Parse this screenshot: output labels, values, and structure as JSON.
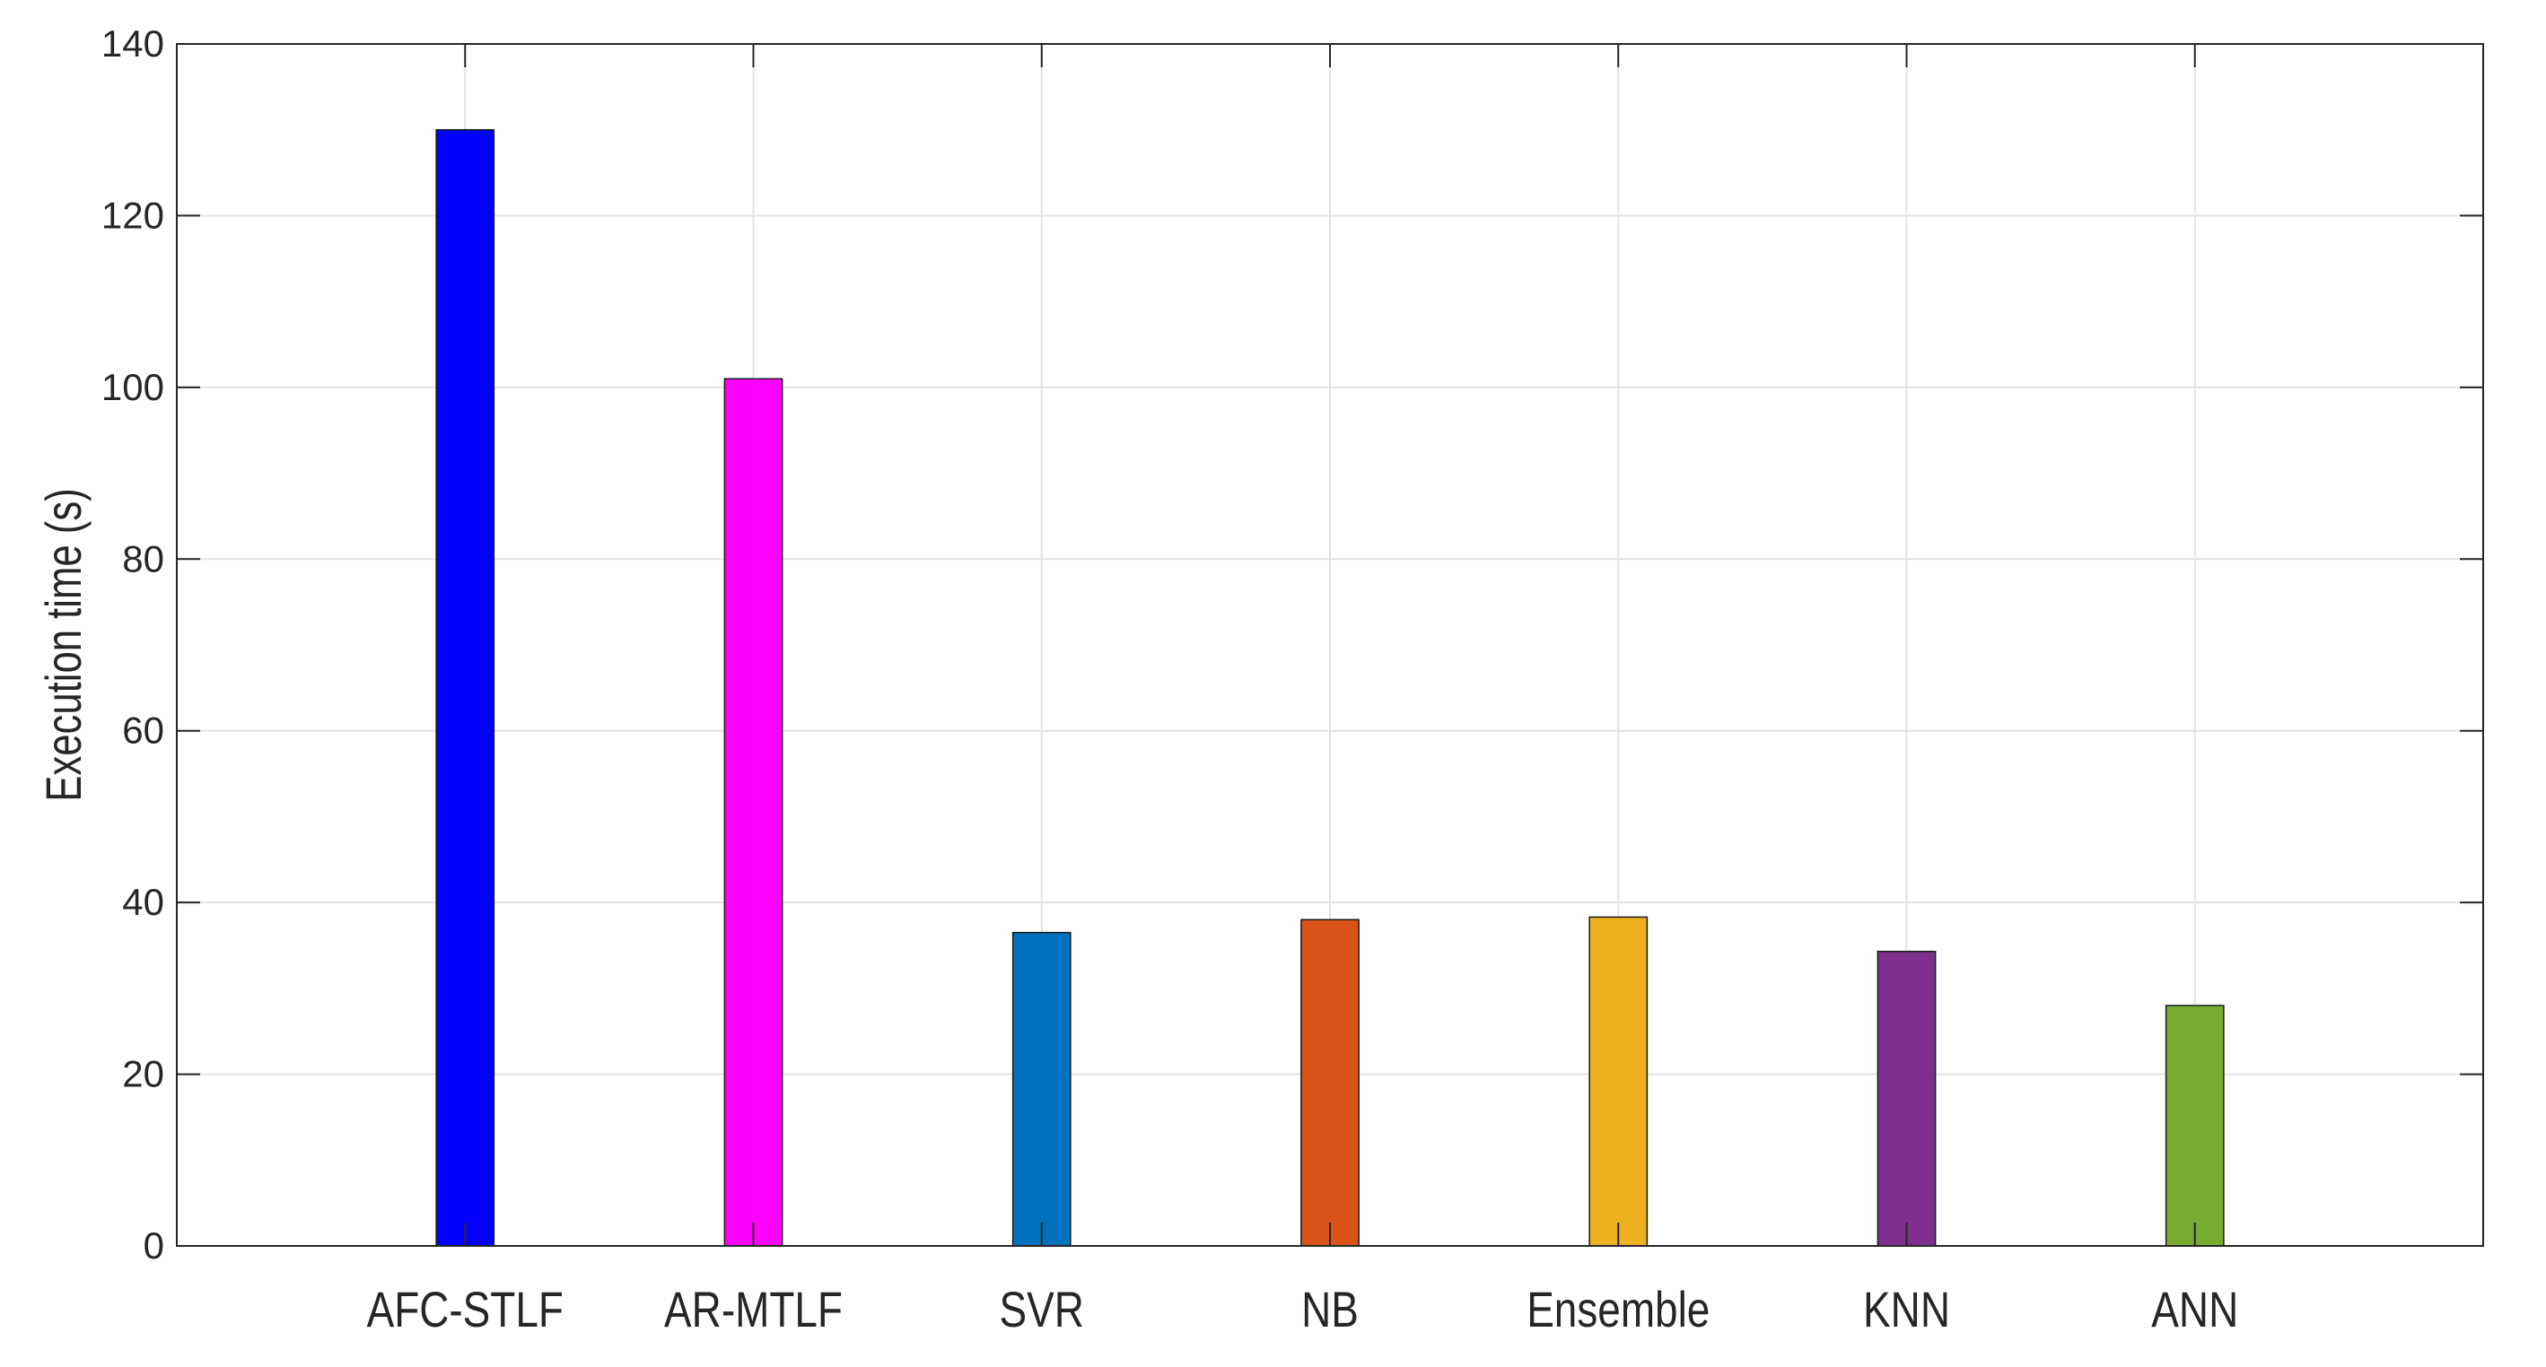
{
  "chart_data": {
    "type": "bar",
    "categories": [
      "AFC-STLF",
      "AR-MTLF",
      "SVR",
      "NB",
      "Ensemble",
      "KNN",
      "ANN"
    ],
    "values": [
      130,
      101,
      36.5,
      38,
      38.3,
      34.3,
      28
    ],
    "colors": [
      "#0000FF",
      "#FF00FF",
      "#0072BD",
      "#D95319",
      "#EDB120",
      "#7E2F8E",
      "#77AC30"
    ],
    "title": "",
    "xlabel": "",
    "ylabel": "Execution time (s)",
    "ylim": [
      0,
      140
    ],
    "yticks": [
      0,
      20,
      40,
      60,
      80,
      100,
      120,
      140
    ],
    "grid": true
  }
}
